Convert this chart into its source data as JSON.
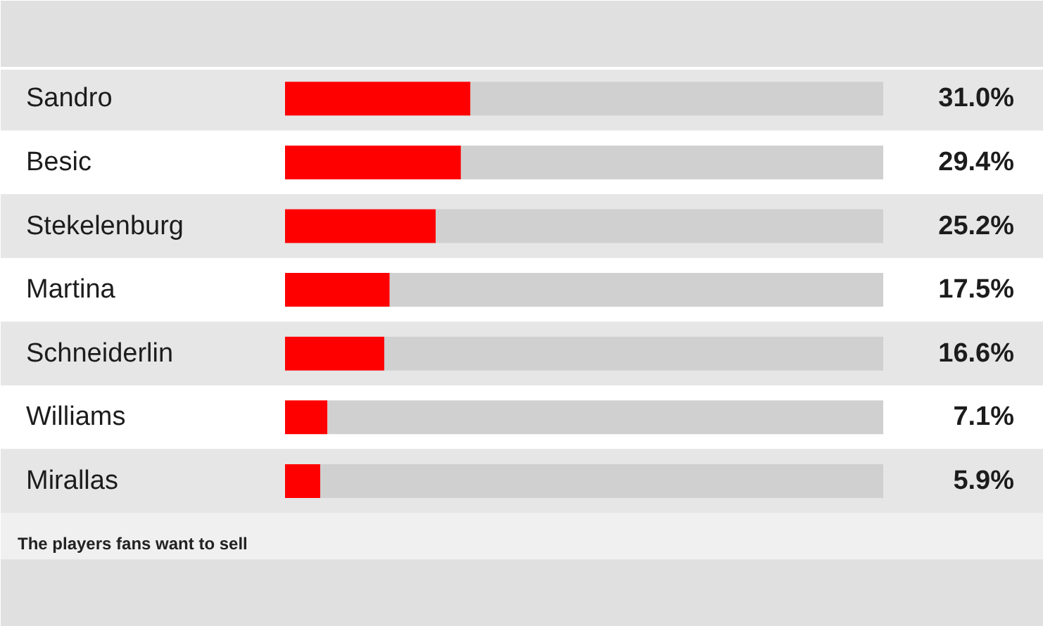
{
  "chart_data": {
    "type": "bar",
    "orientation": "horizontal",
    "stacked": true,
    "categories": [
      "Sandro",
      "Besic",
      "Stekelenburg",
      "Martina",
      "Schneiderlin",
      "Williams",
      "Mirallas"
    ],
    "series": [
      {
        "color": "#ff0000",
        "values": [
          31.0,
          29.4,
          25.2,
          17.5,
          16.6,
          7.1,
          5.9
        ],
        "value_labels": [
          "31.0%",
          "29.4%",
          "25.2%",
          "17.5%",
          "16.6%",
          "7.1%",
          "5.9%"
        ]
      },
      {
        "color": "#d0d0d0",
        "values": [
          69.0,
          70.6,
          74.8,
          82.5,
          83.4,
          92.9,
          94.1
        ]
      }
    ],
    "xlim": [
      0,
      100
    ],
    "tick_labels": "y",
    "annotations": [
      "The players fans want to sell"
    ]
  }
}
